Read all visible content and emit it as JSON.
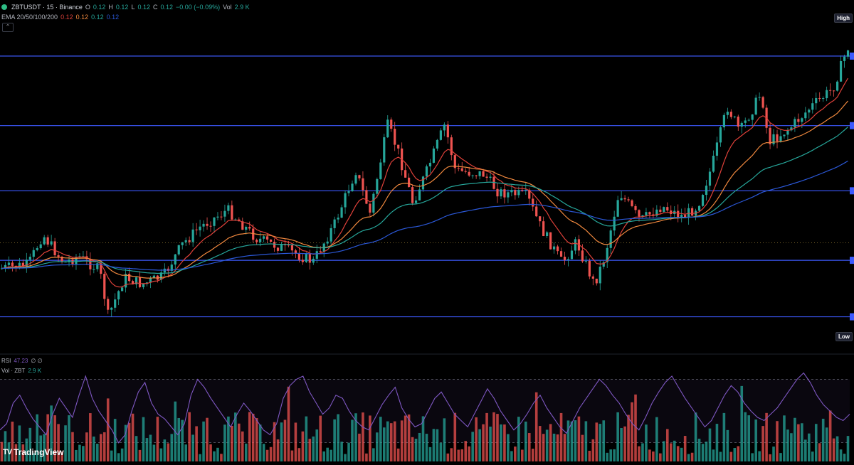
{
  "header": {
    "symbol": "ZBTUSDT · 15 · Binance",
    "open_label": "O",
    "open": "0.12",
    "high_label": "H",
    "high": "0.12",
    "low_label": "L",
    "low": "0.12",
    "close_label": "C",
    "close": "0.12",
    "change": "−0.00 (−0.09%)",
    "vol_label": "Vol",
    "vol": "2.9 K"
  },
  "ema": {
    "label": "EMA 20/50/100/200",
    "v20": "0.12",
    "v50": "0.12",
    "v100": "0.12",
    "v200": "0.12"
  },
  "price_scale": {
    "high_label": "High",
    "low_label": "Low"
  },
  "indicators": {
    "rsi_label": "RSI",
    "rsi_value": "47.23",
    "rsi_extra": "∅ ∅",
    "vol_label": "Vol · ZBT",
    "vol_value": "2.9 K"
  },
  "branding": {
    "logo_text": "TradingView",
    "logo_mark": "TV"
  },
  "collapse_icon": "chevron-up-icon",
  "colors": {
    "background": "#000000",
    "bull": "#26a69a",
    "bear": "#ef5350",
    "ema20": "#e0413a",
    "ema50": "#f0883e",
    "ema100": "#26a69a",
    "ema200": "#2b58d8",
    "hlines": "#3d5afe",
    "rsi": "#7e57c2"
  },
  "chart_data": {
    "type": "line",
    "series": [
      {
        "name": "RSI",
        "values": [
          38,
          42,
          55,
          60,
          52,
          45,
          40,
          35,
          48,
          58,
          52,
          46,
          60,
          72,
          58,
          50,
          44,
          38,
          30,
          35,
          50,
          62,
          68,
          55,
          48,
          45,
          40,
          35,
          42,
          60,
          70,
          65,
          58,
          52,
          46,
          40,
          48,
          55,
          50,
          44,
          38,
          35,
          42,
          58,
          66,
          70,
          72,
          62,
          55,
          48,
          52,
          60,
          58,
          50,
          44,
          40,
          38,
          46,
          54,
          60,
          65,
          52,
          45,
          40,
          42,
          50,
          58,
          62,
          55,
          48,
          44,
          40,
          48,
          56,
          64,
          58,
          50,
          44,
          38,
          42,
          48,
          55,
          60,
          52,
          46,
          40,
          36,
          44,
          52,
          58,
          64,
          70,
          66,
          60,
          55,
          48,
          42,
          38,
          46,
          55,
          62,
          68,
          72,
          65,
          58,
          52,
          46,
          40,
          44,
          52,
          60,
          66,
          62,
          55,
          50,
          46,
          44,
          48,
          52,
          58,
          64,
          70,
          74,
          68,
          60,
          54,
          50,
          46,
          44,
          48
        ]
      }
    ],
    "hlevels": [
      0.145,
      0.137,
      0.1295,
      0.1215,
      0.115
    ]
  }
}
